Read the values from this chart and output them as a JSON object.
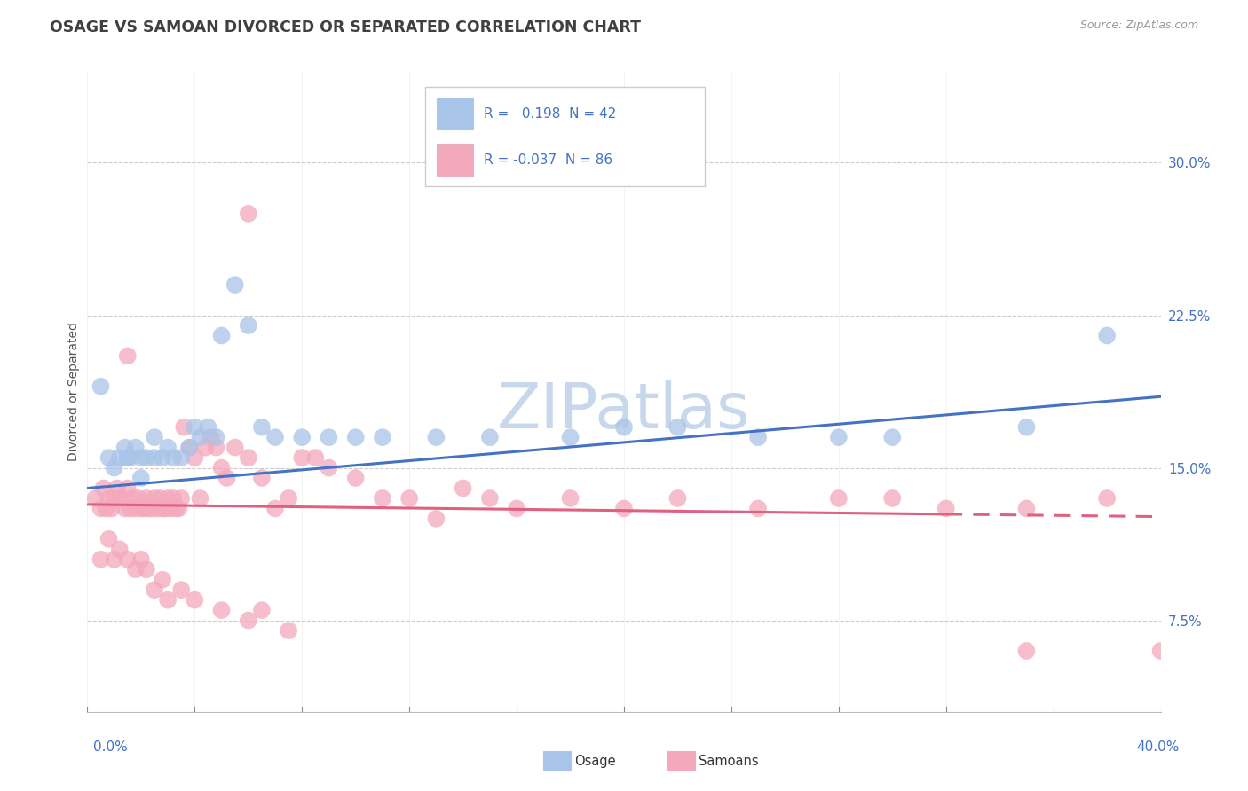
{
  "title": "OSAGE VS SAMOAN DIVORCED OR SEPARATED CORRELATION CHART",
  "source": "Source: ZipAtlas.com",
  "ylabel": "Divorced or Separated",
  "ytick_vals": [
    0.075,
    0.15,
    0.225,
    0.3
  ],
  "ytick_labels": [
    "7.5%",
    "15.0%",
    "22.5%",
    "30.0%"
  ],
  "xrange": [
    0.0,
    0.4
  ],
  "yrange": [
    0.03,
    0.345
  ],
  "legend_r1_text": "R =   0.198  N = 42",
  "legend_r2_text": "R = -0.037  N = 86",
  "osage_color": "#a8c4e8",
  "samoan_color": "#f4a8bc",
  "osage_line_color": "#4472c4",
  "samoan_line_color": "#e06080",
  "background_color": "#ffffff",
  "grid_color": "#cccccc",
  "title_color": "#404040",
  "axis_label_color": "#4472c4",
  "legend_text_color": "#4472c4",
  "legend_box_color": "#4472c4",
  "watermark_color": "#c8d8ec",
  "title_fontsize": 12.5,
  "axis_fontsize": 11,
  "legend_fontsize": 11,
  "osage_x": [
    0.005,
    0.008,
    0.01,
    0.012,
    0.014,
    0.015,
    0.016,
    0.018,
    0.02,
    0.022,
    0.025,
    0.028,
    0.03,
    0.032,
    0.035,
    0.038,
    0.04,
    0.042,
    0.045,
    0.048,
    0.05,
    0.055,
    0.06,
    0.065,
    0.07,
    0.08,
    0.09,
    0.1,
    0.11,
    0.13,
    0.15,
    0.18,
    0.2,
    0.22,
    0.25,
    0.28,
    0.3,
    0.35,
    0.38,
    0.015,
    0.02,
    0.025
  ],
  "osage_y": [
    0.19,
    0.155,
    0.15,
    0.155,
    0.16,
    0.155,
    0.155,
    0.16,
    0.145,
    0.155,
    0.165,
    0.155,
    0.16,
    0.155,
    0.155,
    0.16,
    0.17,
    0.165,
    0.17,
    0.165,
    0.215,
    0.24,
    0.22,
    0.17,
    0.165,
    0.165,
    0.165,
    0.165,
    0.165,
    0.165,
    0.165,
    0.165,
    0.17,
    0.17,
    0.165,
    0.165,
    0.165,
    0.17,
    0.215,
    0.155,
    0.155,
    0.155
  ],
  "samoan_x": [
    0.003,
    0.005,
    0.006,
    0.007,
    0.008,
    0.009,
    0.01,
    0.011,
    0.012,
    0.013,
    0.014,
    0.015,
    0.016,
    0.017,
    0.018,
    0.019,
    0.02,
    0.021,
    0.022,
    0.023,
    0.024,
    0.025,
    0.026,
    0.027,
    0.028,
    0.029,
    0.03,
    0.031,
    0.032,
    0.033,
    0.034,
    0.035,
    0.036,
    0.038,
    0.04,
    0.042,
    0.044,
    0.046,
    0.048,
    0.05,
    0.052,
    0.055,
    0.06,
    0.065,
    0.07,
    0.075,
    0.08,
    0.085,
    0.09,
    0.1,
    0.11,
    0.12,
    0.13,
    0.14,
    0.15,
    0.16,
    0.18,
    0.2,
    0.22,
    0.25,
    0.28,
    0.3,
    0.32,
    0.35,
    0.38,
    0.005,
    0.008,
    0.01,
    0.012,
    0.015,
    0.018,
    0.02,
    0.022,
    0.025,
    0.028,
    0.03,
    0.035,
    0.04,
    0.05,
    0.06,
    0.065,
    0.075,
    0.015,
    0.06,
    0.35,
    0.4
  ],
  "samoan_y": [
    0.135,
    0.13,
    0.14,
    0.13,
    0.135,
    0.13,
    0.135,
    0.14,
    0.135,
    0.135,
    0.13,
    0.14,
    0.13,
    0.135,
    0.13,
    0.135,
    0.13,
    0.13,
    0.135,
    0.13,
    0.13,
    0.135,
    0.13,
    0.135,
    0.13,
    0.13,
    0.135,
    0.13,
    0.135,
    0.13,
    0.13,
    0.135,
    0.17,
    0.16,
    0.155,
    0.135,
    0.16,
    0.165,
    0.16,
    0.15,
    0.145,
    0.16,
    0.155,
    0.145,
    0.13,
    0.135,
    0.155,
    0.155,
    0.15,
    0.145,
    0.135,
    0.135,
    0.125,
    0.14,
    0.135,
    0.13,
    0.135,
    0.13,
    0.135,
    0.13,
    0.135,
    0.135,
    0.13,
    0.13,
    0.135,
    0.105,
    0.115,
    0.105,
    0.11,
    0.105,
    0.1,
    0.105,
    0.1,
    0.09,
    0.095,
    0.085,
    0.09,
    0.085,
    0.08,
    0.075,
    0.08,
    0.07,
    0.205,
    0.275,
    0.06,
    0.06
  ],
  "osage_trend": [
    0.14,
    0.185
  ],
  "samoan_trend": [
    0.132,
    0.126
  ]
}
